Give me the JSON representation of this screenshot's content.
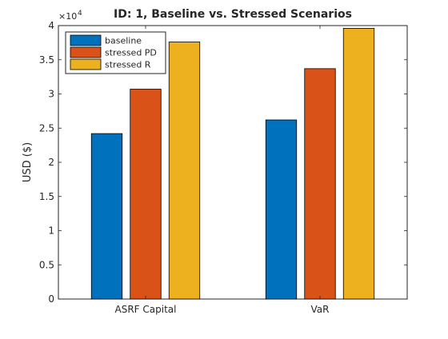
{
  "chart_data": {
    "type": "bar",
    "title": "ID: 1, Baseline vs. Stressed Scenarios",
    "xlabel": "",
    "ylabel": "USD ($)",
    "y_exponent_label": "×10",
    "y_exponent_power": "4",
    "ylim": [
      0,
      4
    ],
    "yticks": [
      "0",
      "0.5",
      "1",
      "1.5",
      "2",
      "2.5",
      "3",
      "3.5",
      "4"
    ],
    "categories": [
      "ASRF Capital",
      "VaR"
    ],
    "series": [
      {
        "name": "baseline",
        "color": "#0072BD",
        "values": [
          2.42,
          2.62
        ]
      },
      {
        "name": "stressed PD",
        "color": "#D95319",
        "values": [
          3.07,
          3.37
        ]
      },
      {
        "name": "stressed R",
        "color": "#EDB120",
        "values": [
          3.76,
          3.96
        ]
      }
    ],
    "legend_position": "top-left",
    "grid": false
  }
}
